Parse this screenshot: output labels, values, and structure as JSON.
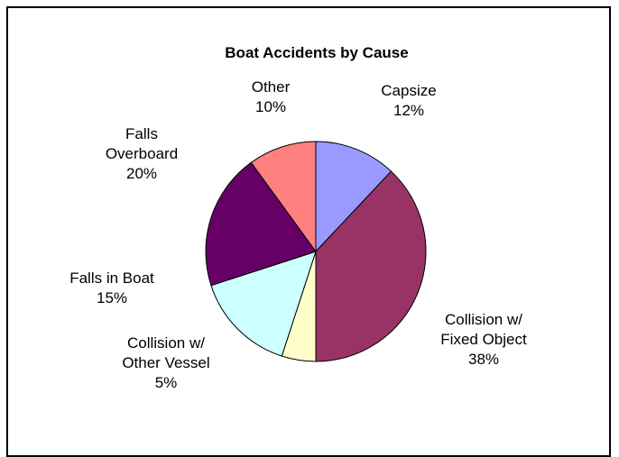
{
  "chart_data": {
    "type": "pie",
    "title": "Boat Accidents by Cause",
    "start_angle_deg": 0,
    "direction": "clockwise",
    "slices": [
      {
        "lines": [
          "Capsize"
        ],
        "value": 12,
        "percent_label": "12%",
        "color": "#9999ff"
      },
      {
        "lines": [
          "Collision w/",
          "Fixed Object"
        ],
        "value": 38,
        "percent_label": "38%",
        "color": "#993366"
      },
      {
        "lines": [
          "Collision w/",
          "Other Vessel"
        ],
        "value": 5,
        "percent_label": "5%",
        "color": "#ffffcc"
      },
      {
        "lines": [
          "Falls in Boat"
        ],
        "value": 15,
        "percent_label": "15%",
        "color": "#ccffff"
      },
      {
        "lines": [
          "Falls",
          "Overboard"
        ],
        "value": 20,
        "percent_label": "20%",
        "color": "#660066"
      },
      {
        "lines": [
          "Other"
        ],
        "value": 10,
        "percent_label": "10%",
        "color": "#ff8080"
      }
    ],
    "legend": "none",
    "data_labels": "outside"
  }
}
